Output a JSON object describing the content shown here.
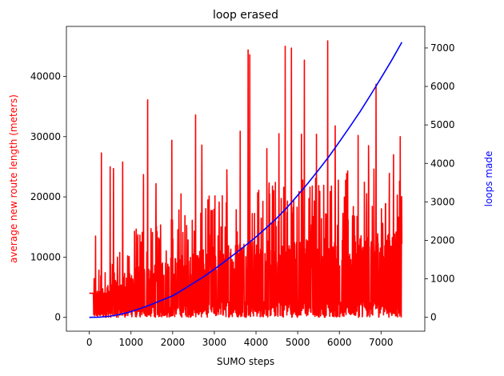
{
  "chart_data": {
    "type": "line",
    "title": "loop erased",
    "xlabel": "SUMO steps",
    "ylabel_left": "average new route length (meters)",
    "ylabel_right": "loops made",
    "xlim": [
      -550,
      8050
    ],
    "ylim_left": [
      -2300,
      48300
    ],
    "ylim_right": [
      -360,
      7560
    ],
    "xticks": [
      0,
      1000,
      2000,
      3000,
      4000,
      5000,
      6000,
      7000
    ],
    "yticks_left": [
      0,
      10000,
      20000,
      30000,
      40000
    ],
    "yticks_right": [
      0,
      1000,
      2000,
      3000,
      4000,
      5000,
      6000,
      7000
    ],
    "colors": {
      "left_series": "#ff0000",
      "right_series": "#0000ff",
      "left_label": "#ff0000",
      "right_label": "#0000ff"
    },
    "series": [
      {
        "axis": "left",
        "color": "#ff0000",
        "noisy": true,
        "x_range": [
          0,
          7500
        ],
        "baseline_envelope": {
          "x": [
            0,
            1000,
            2000,
            3000,
            4000,
            5000,
            6000,
            7000,
            7500
          ],
          "typical_max": [
            4000,
            9000,
            11000,
            13000,
            14000,
            14500,
            15000,
            15500,
            16000
          ]
        },
        "peaks": [
          {
            "x": 150,
            "y": 13500
          },
          {
            "x": 290,
            "y": 27300
          },
          {
            "x": 500,
            "y": 25000
          },
          {
            "x": 580,
            "y": 24700
          },
          {
            "x": 800,
            "y": 25800
          },
          {
            "x": 1300,
            "y": 23700
          },
          {
            "x": 1400,
            "y": 36100
          },
          {
            "x": 1600,
            "y": 22200
          },
          {
            "x": 1980,
            "y": 29400
          },
          {
            "x": 2200,
            "y": 20500
          },
          {
            "x": 2550,
            "y": 33600
          },
          {
            "x": 2700,
            "y": 28600
          },
          {
            "x": 3300,
            "y": 24500
          },
          {
            "x": 3620,
            "y": 30900
          },
          {
            "x": 3810,
            "y": 44400
          },
          {
            "x": 3850,
            "y": 43600
          },
          {
            "x": 4260,
            "y": 28000
          },
          {
            "x": 4550,
            "y": 30500
          },
          {
            "x": 4700,
            "y": 45000
          },
          {
            "x": 4850,
            "y": 44700
          },
          {
            "x": 5090,
            "y": 30400
          },
          {
            "x": 5160,
            "y": 42700
          },
          {
            "x": 5450,
            "y": 30400
          },
          {
            "x": 5720,
            "y": 45900
          },
          {
            "x": 5900,
            "y": 31800
          },
          {
            "x": 6200,
            "y": 24300
          },
          {
            "x": 6450,
            "y": 30200
          },
          {
            "x": 6700,
            "y": 28500
          },
          {
            "x": 6880,
            "y": 38700
          },
          {
            "x": 7300,
            "y": 27000
          },
          {
            "x": 7460,
            "y": 30000
          }
        ]
      },
      {
        "axis": "right",
        "color": "#0000ff",
        "x": [
          0,
          250,
          500,
          750,
          1000,
          1250,
          1500,
          1750,
          2000,
          2250,
          2500,
          2750,
          3000,
          3250,
          3500,
          3750,
          4000,
          4250,
          4500,
          4750,
          5000,
          5250,
          5500,
          5750,
          6000,
          6250,
          6500,
          6750,
          7000,
          7250,
          7500
        ],
        "y": [
          0,
          5,
          30,
          80,
          150,
          240,
          340,
          450,
          560,
          720,
          890,
          1060,
          1250,
          1450,
          1660,
          1870,
          2090,
          2330,
          2580,
          2860,
          3170,
          3490,
          3830,
          4180,
          4560,
          4950,
          5350,
          5780,
          6220,
          6670,
          7150
        ]
      }
    ]
  }
}
